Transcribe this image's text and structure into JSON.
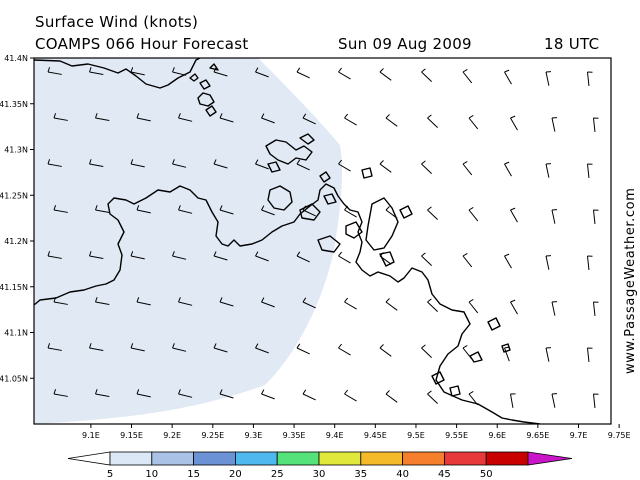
{
  "header": {
    "line1": "Surface Wind (knots)",
    "model": "COAMPS 066 Hour Forecast",
    "date": "Sun 09 Aug 2009",
    "time": "18 UTC"
  },
  "watermark": "www.PassageWeather.com",
  "map": {
    "lat_labels": [
      "41.4N",
      "41.35N",
      "41.3N",
      "41.25N",
      "41.2N",
      "41.15N",
      "41.1N",
      "41.05N"
    ],
    "lat_values": [
      41.4,
      41.35,
      41.3,
      41.25,
      41.2,
      41.15,
      41.1,
      41.05
    ],
    "lat_range": [
      41.0,
      41.4
    ],
    "lon_labels": [
      "9.1E",
      "9.15E",
      "9.2E",
      "9.25E",
      "9.3E",
      "9.35E",
      "9.4E",
      "9.45E",
      "9.5E",
      "9.55E",
      "9.6E",
      "9.65E",
      "9.7E",
      "9.75E"
    ],
    "lon_values": [
      9.1,
      9.15,
      9.2,
      9.25,
      9.3,
      9.35,
      9.4,
      9.45,
      9.5,
      9.55,
      9.6,
      9.65,
      9.7,
      9.75
    ],
    "lon_range": [
      9.03,
      9.74
    ],
    "shade_color": "#e1e9f5",
    "land_color": "#000000"
  },
  "colorbar": {
    "labels": [
      "5",
      "10",
      "15",
      "20",
      "25",
      "30",
      "35",
      "40",
      "45",
      "50"
    ],
    "colors": [
      "#ffffff",
      "#dde8f6",
      "#a9c2e6",
      "#6b92d4",
      "#4fb8ef",
      "#55e27a",
      "#e0e83c",
      "#f5ba2a",
      "#f67f2d",
      "#e8393a",
      "#c90000",
      "#c816c8"
    ]
  }
}
